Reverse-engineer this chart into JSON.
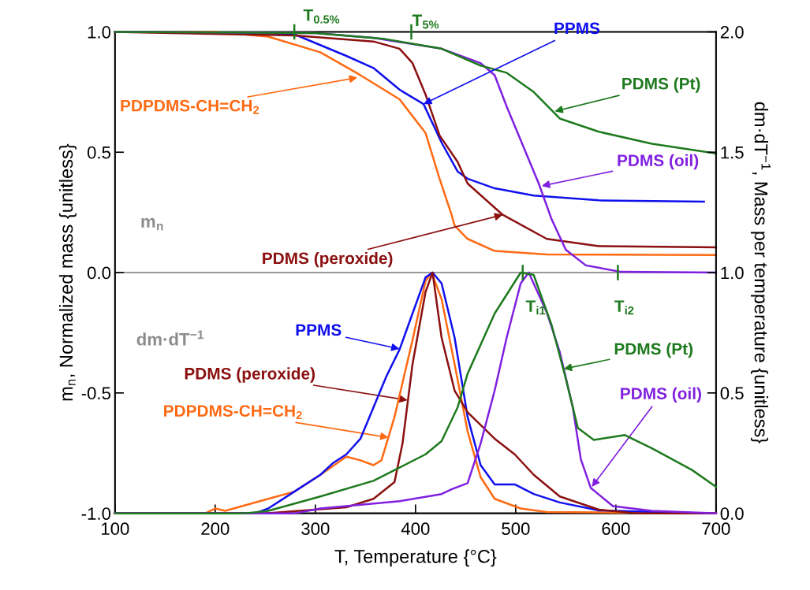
{
  "chart_data": {
    "type": "line",
    "xlabel": "T, Temperature {°C}",
    "ylabel": "m$_{n}$, Normalized mass {unitless}",
    "y2label": "dm·dT$^{−1}$, Mass per temperature {unitless}",
    "xlim": [
      100,
      700
    ],
    "xticks": [
      100,
      200,
      300,
      400,
      500,
      600,
      700
    ],
    "ylim": [
      -1,
      1
    ],
    "yticks": [
      {
        "value": -1,
        "label": "-1.0"
      },
      {
        "value": -0.5,
        "label": "-0.5"
      },
      {
        "value": 0,
        "label": "0.0"
      },
      {
        "value": 0.5,
        "label": "0.5"
      },
      {
        "value": 1,
        "label": "1.0"
      }
    ],
    "y2lim": [
      0,
      2
    ],
    "y2ticks": [
      {
        "value": 0,
        "label": "0.0"
      },
      {
        "value": 0.5,
        "label": "0.5"
      },
      {
        "value": 1,
        "label": "1.0"
      },
      {
        "value": 1.5,
        "label": "1.5"
      },
      {
        "value": 2,
        "label": "2.0"
      }
    ],
    "grid": false,
    "legend": false,
    "marker": "none",
    "line_style": "solid",
    "ref_lines": [
      {
        "axis": "y",
        "value": 0,
        "color": "#999999"
      }
    ],
    "series": [
      {
        "color": "#ff6a13",
        "x": [
          100,
          200,
          253,
          305,
          345,
          384,
          410,
          424,
          436,
          439,
          452,
          479,
          531,
          700
        ],
        "values": [
          1.0,
          1.0,
          0.98,
          0.915,
          0.82,
          0.72,
          0.58,
          0.39,
          0.24,
          0.195,
          0.14,
          0.09,
          0.075,
          0.073
        ]
      },
      {
        "color": "#1010ee",
        "x": [
          100,
          250,
          279,
          331,
          358,
          384,
          408,
          426,
          442,
          452,
          479,
          518,
          583,
          688
        ],
        "values": [
          1.0,
          0.995,
          0.99,
          0.9,
          0.85,
          0.76,
          0.7,
          0.54,
          0.42,
          0.39,
          0.35,
          0.32,
          0.3,
          0.295
        ]
      },
      {
        "color": "#8b1010",
        "x": [
          100,
          279,
          358,
          384,
          397,
          410,
          424,
          442,
          452,
          487,
          531,
          583,
          700
        ],
        "values": [
          1.0,
          0.985,
          0.96,
          0.93,
          0.87,
          0.74,
          0.57,
          0.46,
          0.37,
          0.24,
          0.14,
          0.11,
          0.105
        ]
      },
      {
        "color": "#8020e0",
        "x": [
          100,
          300,
          358,
          426,
          465,
          479,
          491,
          505,
          523,
          536,
          550,
          570,
          605,
          700
        ],
        "values": [
          1.0,
          0.995,
          0.975,
          0.93,
          0.87,
          0.82,
          0.69,
          0.55,
          0.37,
          0.22,
          0.095,
          0.03,
          0.003,
          0.0
        ]
      },
      {
        "color": "#1e7a1e",
        "x": [
          100,
          300,
          370,
          426,
          465,
          491,
          518,
          544,
          583,
          636,
          700
        ],
        "values": [
          1.0,
          0.995,
          0.97,
          0.93,
          0.86,
          0.83,
          0.75,
          0.64,
          0.585,
          0.535,
          0.495
        ]
      },
      {
        "color": "#ff6a13",
        "axis": "y2",
        "x": [
          100,
          190,
          200,
          210,
          253,
          279,
          305,
          331,
          345,
          358,
          366,
          379,
          397,
          410,
          416,
          426,
          439,
          452,
          465,
          479,
          505,
          531,
          700
        ],
        "values": [
          0.0,
          0.0,
          0.02,
          0.01,
          0.06,
          0.09,
          0.16,
          0.235,
          0.22,
          0.2,
          0.22,
          0.4,
          0.72,
          0.965,
          1.0,
          0.89,
          0.62,
          0.34,
          0.15,
          0.06,
          0.02,
          0.005,
          0.0
        ]
      },
      {
        "color": "#1010ee",
        "axis": "y2",
        "x": [
          100,
          240,
          253,
          279,
          305,
          318,
          331,
          345,
          358,
          371,
          384,
          397,
          410,
          417,
          426,
          439,
          452,
          465,
          479,
          499,
          518,
          544,
          583,
          690
        ],
        "values": [
          0.0,
          0.0,
          0.02,
          0.09,
          0.16,
          0.21,
          0.245,
          0.31,
          0.44,
          0.57,
          0.68,
          0.83,
          0.98,
          1.0,
          0.955,
          0.73,
          0.4,
          0.2,
          0.12,
          0.12,
          0.08,
          0.045,
          0.012,
          0.0
        ]
      },
      {
        "color": "#8b1010",
        "axis": "y2",
        "x": [
          100,
          250,
          331,
          358,
          379,
          387,
          397,
          410,
          417,
          426,
          439,
          452,
          479,
          499,
          518,
          544,
          583,
          620,
          700
        ],
        "values": [
          0.0,
          0.0,
          0.025,
          0.06,
          0.13,
          0.29,
          0.62,
          0.92,
          1.0,
          0.73,
          0.51,
          0.42,
          0.31,
          0.245,
          0.16,
          0.07,
          0.015,
          0.0,
          0.0
        ]
      },
      {
        "color": "#8020e0",
        "axis": "y2",
        "x": [
          100,
          280,
          305,
          384,
          426,
          436,
          452,
          465,
          479,
          491,
          505,
          513,
          531,
          544,
          557,
          565,
          575,
          597,
          636,
          700
        ],
        "values": [
          0.0,
          0.0,
          0.02,
          0.05,
          0.08,
          0.1,
          0.125,
          0.29,
          0.51,
          0.73,
          0.955,
          1.0,
          0.835,
          0.67,
          0.44,
          0.225,
          0.105,
          0.03,
          0.01,
          0.0
        ]
      },
      {
        "color": "#1e7a1e",
        "axis": "y2",
        "x": [
          100,
          230,
          253,
          305,
          358,
          384,
          410,
          426,
          442,
          452,
          479,
          505,
          518,
          536,
          550,
          562,
          578,
          609,
          636,
          676,
          700
        ],
        "values": [
          0.0,
          0.0,
          0.01,
          0.07,
          0.135,
          0.19,
          0.245,
          0.3,
          0.44,
          0.58,
          0.83,
          1.0,
          0.99,
          0.78,
          0.56,
          0.355,
          0.305,
          0.325,
          0.27,
          0.18,
          0.11
        ]
      }
    ],
    "annotations": [
      {
        "text": "PDPDMS-CH=CH$_{2}$",
        "x": 342,
        "y": 0.81
      },
      {
        "text": "PPMS",
        "x": 408,
        "y": 0.7
      },
      {
        "text": "PDMS (Pt)",
        "x": 539,
        "y": 0.67
      },
      {
        "text": "PDMS (oil)",
        "x": 526,
        "y": 0.36
      },
      {
        "text": "PDMS (peroxide)",
        "x": 487,
        "y": 0.24
      },
      "m$_{n}$",
      "dm·dT$^{−1}$",
      {
        "text": "PPMS",
        "x": 384,
        "y": -0.317
      },
      {
        "text": "PDMS (peroxide)",
        "x": 392,
        "y": -0.53
      },
      {
        "text": "PDPDMS-CH=CH$_{2}$",
        "x": 373,
        "y": -0.685
      },
      {
        "text": "PDMS (Pt)",
        "x": 548,
        "y": -0.4
      },
      {
        "text": "PDMS (oil)",
        "x": 576,
        "y": -0.89
      },
      {
        "text": "T$_{0.5%}$",
        "x": 279,
        "y": 1
      },
      "T$_{5%}$",
      {
        "text": "T$_{i1}$",
        "x": 507,
        "y": 0
      },
      {
        "text": "T$_{i2}$",
        "x": 602,
        "y": 0
      }
    ]
  }
}
